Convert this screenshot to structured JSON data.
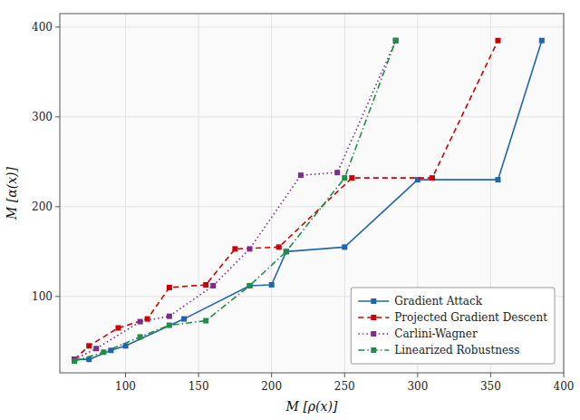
{
  "chart_data": {
    "type": "line",
    "xlabel": "M [ρ(x)]",
    "ylabel": "M [α(x)]",
    "xlim": [
      55,
      400
    ],
    "ylim": [
      15,
      415
    ],
    "xticks": [
      100,
      150,
      200,
      250,
      300,
      350,
      400
    ],
    "yticks": [
      100,
      200,
      300,
      400
    ],
    "grid": true,
    "legend": "lower right",
    "series": [
      {
        "name": "Gradient Attack",
        "color": "#2166ac",
        "line_style": "solid",
        "marker": "square",
        "x": [
          65,
          75,
          90,
          100,
          140,
          185,
          200,
          210,
          250,
          300,
          355,
          385
        ],
        "values": [
          30,
          30,
          40,
          45,
          75,
          112,
          113,
          150,
          155,
          230,
          230,
          385
        ]
      },
      {
        "name": "Projected Gradient Descent",
        "color": "#cc0000",
        "line_style": "dashed",
        "marker": "square",
        "x": [
          65,
          75,
          95,
          115,
          130,
          155,
          175,
          205,
          255,
          310,
          355
        ],
        "values": [
          30,
          45,
          65,
          75,
          110,
          113,
          153,
          155,
          232,
          232,
          385
        ]
      },
      {
        "name": "Carlini-Wagner",
        "color": "#7b2d8b",
        "line_style": "dotted",
        "marker": "square",
        "x": [
          65,
          80,
          110,
          130,
          160,
          185,
          220,
          245,
          285
        ],
        "values": [
          30,
          42,
          72,
          78,
          112,
          153,
          235,
          238,
          385
        ]
      },
      {
        "name": "Linearized Robustness",
        "color": "#238b45",
        "line_style": "dashdot",
        "marker": "square",
        "x": [
          65,
          85,
          110,
          130,
          155,
          185,
          210,
          250,
          285
        ],
        "values": [
          28,
          38,
          55,
          68,
          73,
          112,
          150,
          232,
          385
        ]
      }
    ]
  }
}
